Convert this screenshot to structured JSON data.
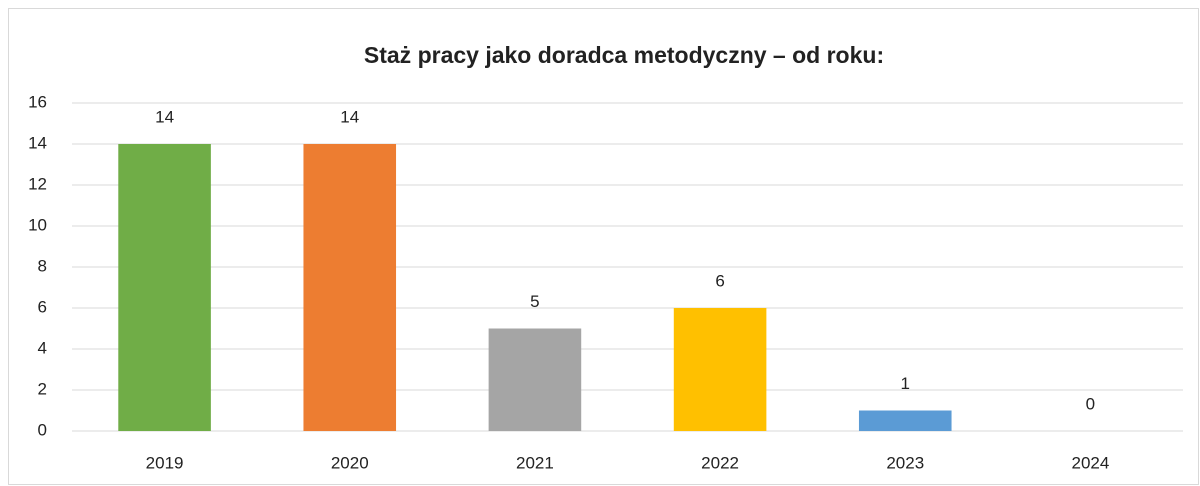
{
  "chart_data": {
    "type": "bar",
    "title": "Staż pracy jako doradca metodyczny – od roku:",
    "categories": [
      "2019",
      "2020",
      "2021",
      "2022",
      "2023",
      "2024"
    ],
    "values": [
      14,
      14,
      5,
      6,
      1,
      0
    ],
    "colors": [
      "#70ad47",
      "#ed7d31",
      "#a5a5a5",
      "#ffc000",
      "#5b9bd5",
      "#4472c4"
    ],
    "ylim": [
      0,
      16
    ],
    "yticks": [
      0,
      2,
      4,
      6,
      8,
      10,
      12,
      14,
      16
    ],
    "grid": true,
    "data_labels": true
  }
}
